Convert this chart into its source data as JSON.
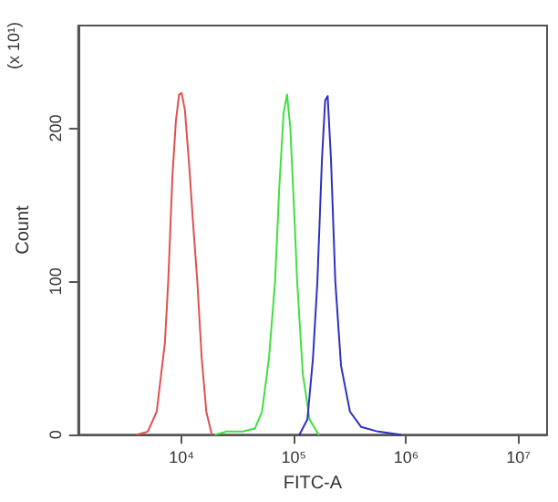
{
  "chart_data": {
    "type": "line",
    "xlabel": "FITC-A",
    "ylabel": "Count",
    "annotations": [
      "(x 10¹)"
    ],
    "log": "x",
    "grid": false,
    "marker": "none",
    "line_style": "solid",
    "xlim": [
      1200,
      18000000
    ],
    "xticks": [
      {
        "value": 10000,
        "label": "10⁴"
      },
      {
        "value": 100000,
        "label": "10⁵"
      },
      {
        "value": 1000000,
        "label": "10⁶"
      },
      {
        "value": 10000000,
        "label": "10⁷"
      }
    ],
    "ylim": [
      0,
      267
    ],
    "yticks": [
      0,
      100,
      200
    ],
    "series": [
      {
        "color": "#e05050",
        "x": [
          4000,
          5000,
          6000,
          7100,
          7600,
          8300,
          8900,
          9500,
          10000,
          10700,
          11700,
          12600,
          13800,
          15100,
          16600,
          18600
        ],
        "values": [
          0,
          2,
          15,
          60,
          100,
          170,
          205,
          222,
          223,
          212,
          175,
          140,
          100,
          50,
          15,
          0
        ]
      },
      {
        "color": "#40e040",
        "x": [
          20000,
          25000,
          35000,
          45000,
          52000,
          60000,
          68000,
          74000,
          81000,
          87000,
          93000,
          100000,
          107000,
          120000,
          138000,
          166000
        ],
        "values": [
          0,
          2,
          2,
          4,
          15,
          50,
          100,
          160,
          210,
          222,
          200,
          150,
          100,
          40,
          10,
          0
        ]
      },
      {
        "color": "#3030c0",
        "x": [
          112000,
          132000,
          148000,
          162000,
          178000,
          190000,
          200000,
          214000,
          234000,
          263000,
          316000,
          398000,
          562000,
          891000
        ],
        "values": [
          0,
          10,
          50,
          100,
          180,
          218,
          221,
          180,
          100,
          45,
          15,
          5,
          2,
          0
        ]
      }
    ]
  }
}
